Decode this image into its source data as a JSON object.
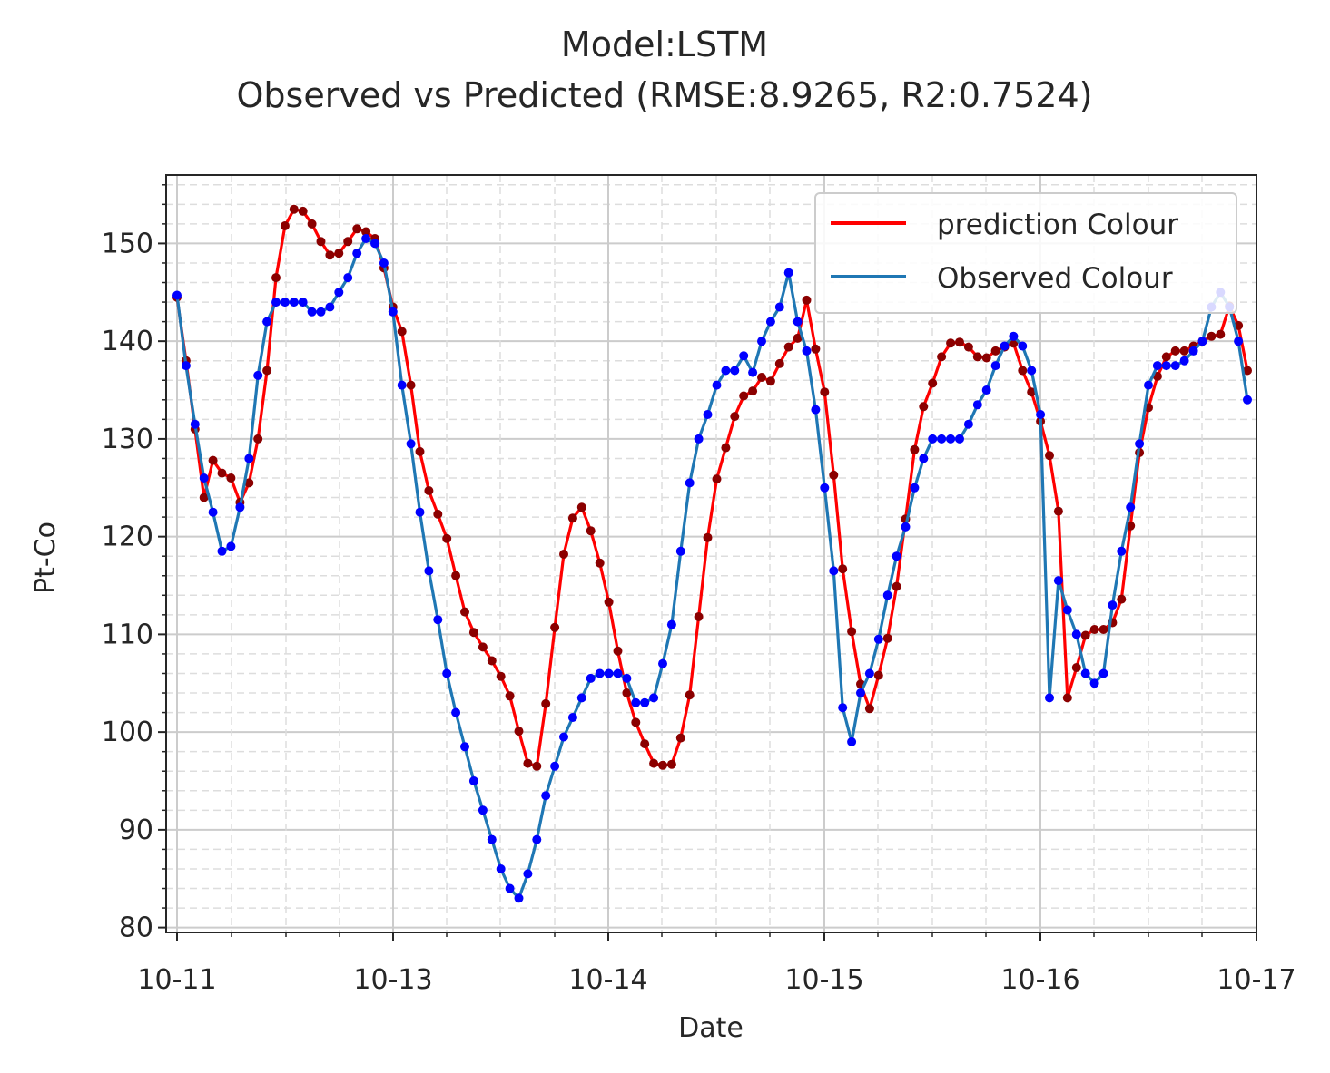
{
  "chart_data": {
    "type": "line",
    "title_line1": "Model:LSTM",
    "title_line2": "Observed vs Predicted (RMSE:8.9265, R2:0.7524)",
    "xlabel": "Date",
    "ylabel": "Pt-Co",
    "x_tick_labels": [
      "10-11",
      "10-13",
      "10-14",
      "10-15",
      "10-16",
      "10-17"
    ],
    "y_ticks": [
      80,
      90,
      100,
      110,
      120,
      130,
      140,
      150
    ],
    "ylim": [
      79.5,
      157
    ],
    "grid": "major solid, minor dashed",
    "legend_position": "top-right",
    "colors": {
      "prediction_line": "#ff0000",
      "prediction_marker": "#8b0000",
      "observed_line": "#1f77b4",
      "observed_marker": "#0000ff"
    },
    "series": [
      {
        "name": "prediction Colour",
        "values": [
          144.5,
          138,
          131,
          124,
          127.8,
          126.5,
          126,
          123.5,
          125.5,
          130,
          137,
          146.5,
          151.8,
          153.5,
          153.3,
          152,
          150.2,
          148.8,
          149,
          150.2,
          151.5,
          151.2,
          150.5,
          147.5,
          143.5,
          141,
          135.5,
          128.7,
          124.7,
          122.3,
          119.8,
          116,
          112.3,
          110.2,
          108.7,
          107.3,
          105.7,
          103.7,
          100.1,
          96.8,
          96.5,
          102.9,
          110.7,
          118.2,
          121.9,
          123,
          120.6,
          117.3,
          113.3,
          108.3,
          104,
          101,
          98.8,
          96.8,
          96.6,
          96.7,
          99.4,
          103.8,
          111.8,
          119.9,
          125.9,
          129.1,
          132.3,
          134.4,
          134.9,
          136.3,
          135.9,
          137.7,
          139.4,
          140.3,
          144.2,
          139.2,
          134.8,
          126.3,
          116.7,
          110.3,
          104.9,
          102.4,
          105.8,
          109.6,
          114.9,
          121.8,
          128.9,
          133.3,
          135.7,
          138.4,
          139.8,
          139.9,
          139.4,
          138.4,
          138.3,
          139,
          139.4,
          139.8,
          137,
          134.8,
          131.8,
          128.3,
          122.6,
          103.5,
          106.6,
          109.9,
          110.5,
          110.5,
          111.2,
          113.6,
          121.1,
          128.6,
          133.2,
          136.4,
          138.4,
          139,
          139,
          139.5,
          140,
          140.5,
          140.7,
          143.6,
          141.6,
          137
        ]
      },
      {
        "name": "Observed Colour",
        "values": [
          144.7,
          137.5,
          131.5,
          126,
          122.5,
          118.5,
          119,
          123,
          128,
          136.5,
          142,
          144,
          144,
          144,
          144,
          143,
          143,
          143.5,
          145,
          146.5,
          149,
          150.5,
          150,
          148,
          143,
          135.5,
          129.5,
          122.5,
          116.5,
          111.5,
          106,
          102,
          98.5,
          95,
          92,
          89,
          86,
          84,
          83,
          85.5,
          89,
          93.5,
          96.5,
          99.5,
          101.5,
          103.5,
          105.5,
          106,
          106,
          106,
          105.5,
          103,
          103,
          103.5,
          107,
          111,
          118.5,
          125.5,
          130,
          132.5,
          135.5,
          137,
          137,
          138.5,
          136.8,
          140,
          142,
          143.5,
          147,
          142,
          139,
          133,
          125,
          116.5,
          102.5,
          99,
          104,
          106,
          109.5,
          114,
          118,
          121,
          125,
          128,
          130,
          130,
          130,
          130,
          131.5,
          133.5,
          135,
          137.5,
          139.5,
          140.5,
          139.5,
          137,
          132.5,
          103.5,
          115.5,
          112.5,
          110,
          106,
          105,
          106,
          113,
          118.5,
          123,
          129.5,
          135.5,
          137.5,
          137.5,
          137.5,
          138,
          139,
          140,
          143.5,
          145,
          143.5,
          140,
          134
        ]
      }
    ]
  }
}
